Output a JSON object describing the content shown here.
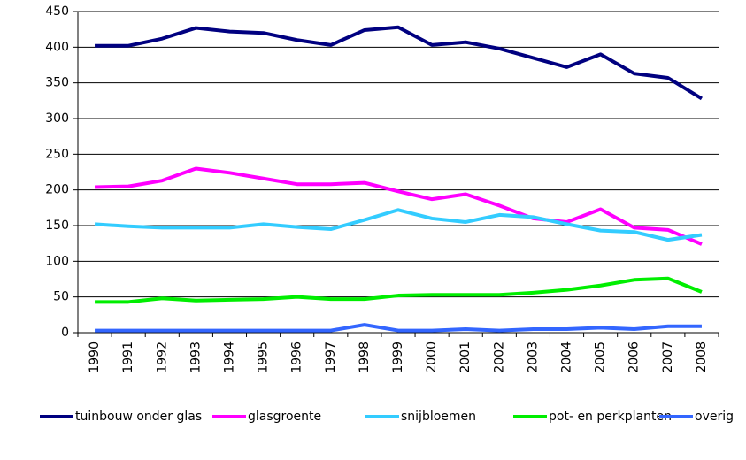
{
  "chart_data": {
    "type": "line",
    "categories": [
      "1990",
      "1991",
      "1992",
      "1993",
      "1994",
      "1995",
      "1996",
      "1997",
      "1998",
      "1999",
      "2000",
      "2001",
      "2002",
      "2003",
      "2004",
      "2005",
      "2006",
      "2007",
      "2008"
    ],
    "series": [
      {
        "name": "tuinbouw onder glas",
        "color": "#000080",
        "values": [
          402,
          402,
          412,
          427,
          422,
          420,
          410,
          403,
          424,
          428,
          403,
          407,
          398,
          385,
          372,
          390,
          363,
          357,
          328
        ]
      },
      {
        "name": "glasgroente",
        "color": "#ff00ff",
        "values": [
          204,
          205,
          213,
          230,
          224,
          216,
          208,
          208,
          210,
          198,
          187,
          194,
          178,
          160,
          155,
          173,
          147,
          144,
          124
        ]
      },
      {
        "name": "snijbloemen",
        "color": "#33ccff",
        "values": [
          152,
          149,
          147,
          147,
          147,
          152,
          148,
          145,
          158,
          172,
          160,
          155,
          165,
          162,
          152,
          143,
          141,
          130,
          137
        ]
      },
      {
        "name": "pot- en perkplanten",
        "color": "#00ee00",
        "values": [
          43,
          43,
          48,
          45,
          46,
          47,
          50,
          47,
          47,
          52,
          53,
          53,
          53,
          56,
          60,
          66,
          74,
          76,
          57
        ]
      },
      {
        "name": "overig",
        "color": "#3366ff",
        "values": [
          3,
          3,
          3,
          3,
          3,
          3,
          3,
          3,
          11,
          3,
          3,
          5,
          3,
          5,
          5,
          7,
          5,
          9,
          9
        ]
      }
    ],
    "ylim": [
      0,
      450
    ],
    "yticks": [
      0,
      50,
      100,
      150,
      200,
      250,
      300,
      350,
      400,
      450
    ],
    "grid": true
  }
}
